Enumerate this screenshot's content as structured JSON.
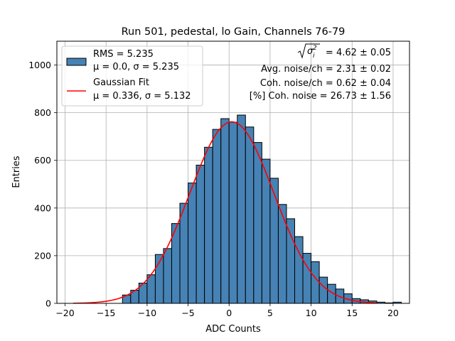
{
  "chart_data": {
    "type": "bar",
    "title": "Run 501, pedestal, lo Gain, Channels 76-79",
    "xlabel": "ADC Counts",
    "ylabel": "Entries",
    "xlim": [
      -21,
      22
    ],
    "ylim": [
      0,
      1100
    ],
    "xticks": [
      -20,
      -15,
      -10,
      -5,
      0,
      5,
      10,
      15,
      20
    ],
    "yticks": [
      0,
      200,
      400,
      600,
      800,
      1000
    ],
    "grid": true,
    "legend_position": "top-left",
    "histogram": {
      "name": "RMS = 5.235\nμ = 0.0, σ = 5.235",
      "legend_line1": "RMS = 5.235",
      "legend_line2": "μ = 0.0, σ = 5.235",
      "color": "#4682b4",
      "edge_color": "#000000",
      "bin_edges": [
        -13,
        -12,
        -11,
        -10,
        -9,
        -8,
        -7,
        -6,
        -5,
        -4,
        -3,
        -2,
        -1,
        0,
        1,
        2,
        3,
        4,
        5,
        6,
        7,
        8,
        9,
        10,
        11,
        12,
        13,
        14,
        15,
        16,
        17,
        18,
        19,
        20,
        21
      ],
      "counts": [
        35,
        55,
        85,
        120,
        205,
        230,
        335,
        420,
        505,
        580,
        655,
        730,
        775,
        760,
        790,
        740,
        675,
        605,
        525,
        415,
        355,
        280,
        210,
        175,
        110,
        80,
        60,
        40,
        20,
        15,
        10,
        5,
        2,
        5
      ]
    },
    "fit": {
      "name": "Gaussian Fit\nμ = 0.336, σ = 5.132",
      "legend_line1": "Gaussian Fit",
      "legend_line2": "μ = 0.336, σ = 5.132",
      "color": "#ff0000",
      "mu": 0.336,
      "sigma": 5.132,
      "amplitude": 762,
      "x_range": [
        -19,
        18
      ]
    },
    "annotations": {
      "sigma_total_value": " = 4.62 ± 0.05",
      "avg_noise": "Avg. noise/ch = 2.31 ± 0.02",
      "coh_noise": "Coh. noise/ch = 0.62 ± 0.04",
      "pct_coh_noise": "[%] Coh. noise = 26.73 ± 1.56"
    }
  }
}
